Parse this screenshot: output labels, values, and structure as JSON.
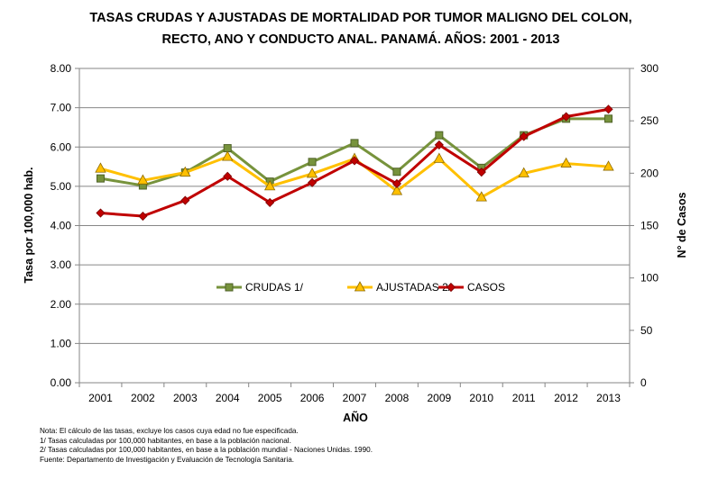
{
  "chart_data": {
    "type": "line",
    "title_lines": [
      "TASAS CRUDAS Y AJUSTADAS DE MORTALIDAD POR TUMOR MALIGNO DEL COLON,",
      "RECTO, ANO Y CONDUCTO ANAL.  PANAMÁ.  AÑOS: 2001 - 2013"
    ],
    "xlabel": "AÑO",
    "ylabel": "Tasa por 100,000 hab.",
    "y2label": "N° de Casos",
    "categories": [
      "2001",
      "2002",
      "2003",
      "2004",
      "2005",
      "2006",
      "2007",
      "2008",
      "2009",
      "2010",
      "2011",
      "2012",
      "2013"
    ],
    "ylim": [
      0,
      8
    ],
    "y2lim": [
      0,
      300
    ],
    "yticks": [
      "0.00",
      "1.00",
      "2.00",
      "3.00",
      "4.00",
      "5.00",
      "6.00",
      "7.00",
      "8.00"
    ],
    "y2ticks": [
      "0",
      "50",
      "100",
      "150",
      "200",
      "250",
      "300"
    ],
    "legend_position": "center",
    "series": [
      {
        "name": "CRUDAS 1/",
        "axis": "left",
        "color": "#77933C",
        "marker": "square",
        "values": [
          5.2,
          5.02,
          5.35,
          5.97,
          5.12,
          5.62,
          6.1,
          5.37,
          6.3,
          5.47,
          6.3,
          6.72,
          6.72
        ]
      },
      {
        "name": "AJUSTADAS 2/",
        "axis": "left",
        "color": "#FFC000",
        "marker": "triangle",
        "values": [
          5.45,
          5.15,
          5.35,
          5.75,
          5.0,
          5.32,
          5.7,
          4.88,
          5.7,
          4.72,
          5.33,
          5.58,
          5.5
        ]
      },
      {
        "name": "CASOS",
        "axis": "right",
        "color": "#C00000",
        "marker": "diamond",
        "values": [
          162,
          159,
          174,
          197,
          172,
          191,
          212,
          190,
          227,
          201,
          235,
          254,
          261
        ]
      }
    ]
  },
  "notes": [
    "Nota: El cálculo de las tasas, excluye  los casos cuya edad no fue especificada.",
    "1/ Tasas calculadas  por 100,000  habitantes, en base a la población nacional.",
    "2/ Tasas calculadas  por 100,000 habitantes, en base a la población mundial - Naciones Unidas. 1990.",
    "Fuente:  Departamento  de  Investigación  y Evaluación  de Tecnología  Sanitaria."
  ]
}
